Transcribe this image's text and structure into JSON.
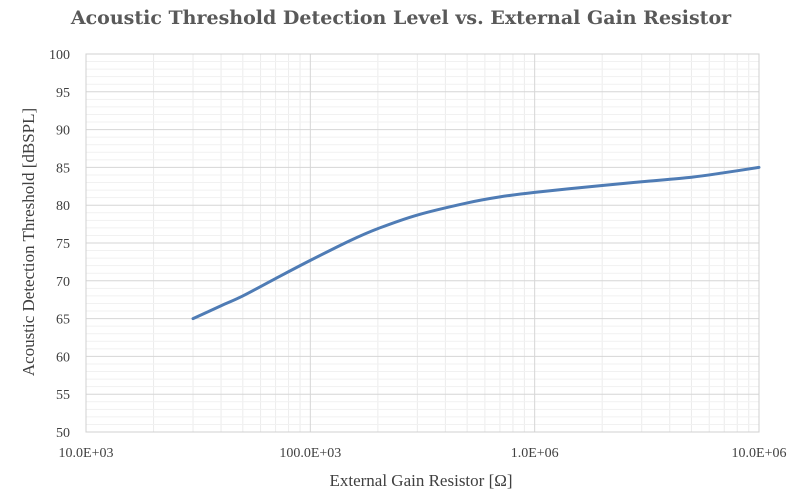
{
  "chart_data": {
    "type": "line",
    "title": "Acoustic Threshold Detection Level vs. External Gain Resistor",
    "xlabel": "External Gain Resistor [Ω]",
    "ylabel": "Acoustic Detection Threshold [dBSPL]",
    "x_scale": "log",
    "xlim": [
      10000,
      10000000
    ],
    "ylim": [
      50,
      100
    ],
    "x_ticks": [
      10000,
      100000,
      1000000,
      10000000
    ],
    "x_tick_labels": [
      "10.0E+03",
      "100.0E+03",
      "1.0E+06",
      "10.0E+06"
    ],
    "y_ticks": [
      50,
      55,
      60,
      65,
      70,
      75,
      80,
      85,
      90,
      95,
      100
    ],
    "y_tick_labels": [
      "50",
      "55",
      "60",
      "65",
      "70",
      "75",
      "80",
      "85",
      "90",
      "95",
      "100"
    ],
    "grid": true,
    "series": [
      {
        "color": "#4f7cb5",
        "x": [
          30000,
          40000,
          50000,
          70000,
          100000,
          150000,
          200000,
          300000,
          500000,
          700000,
          1000000,
          2000000,
          3000000,
          5000000,
          7000000,
          10000000
        ],
        "y": [
          65.0,
          66.7,
          68.0,
          70.3,
          72.7,
          75.3,
          76.9,
          78.7,
          80.3,
          81.1,
          81.7,
          82.6,
          83.1,
          83.7,
          84.3,
          85.0
        ]
      }
    ]
  }
}
